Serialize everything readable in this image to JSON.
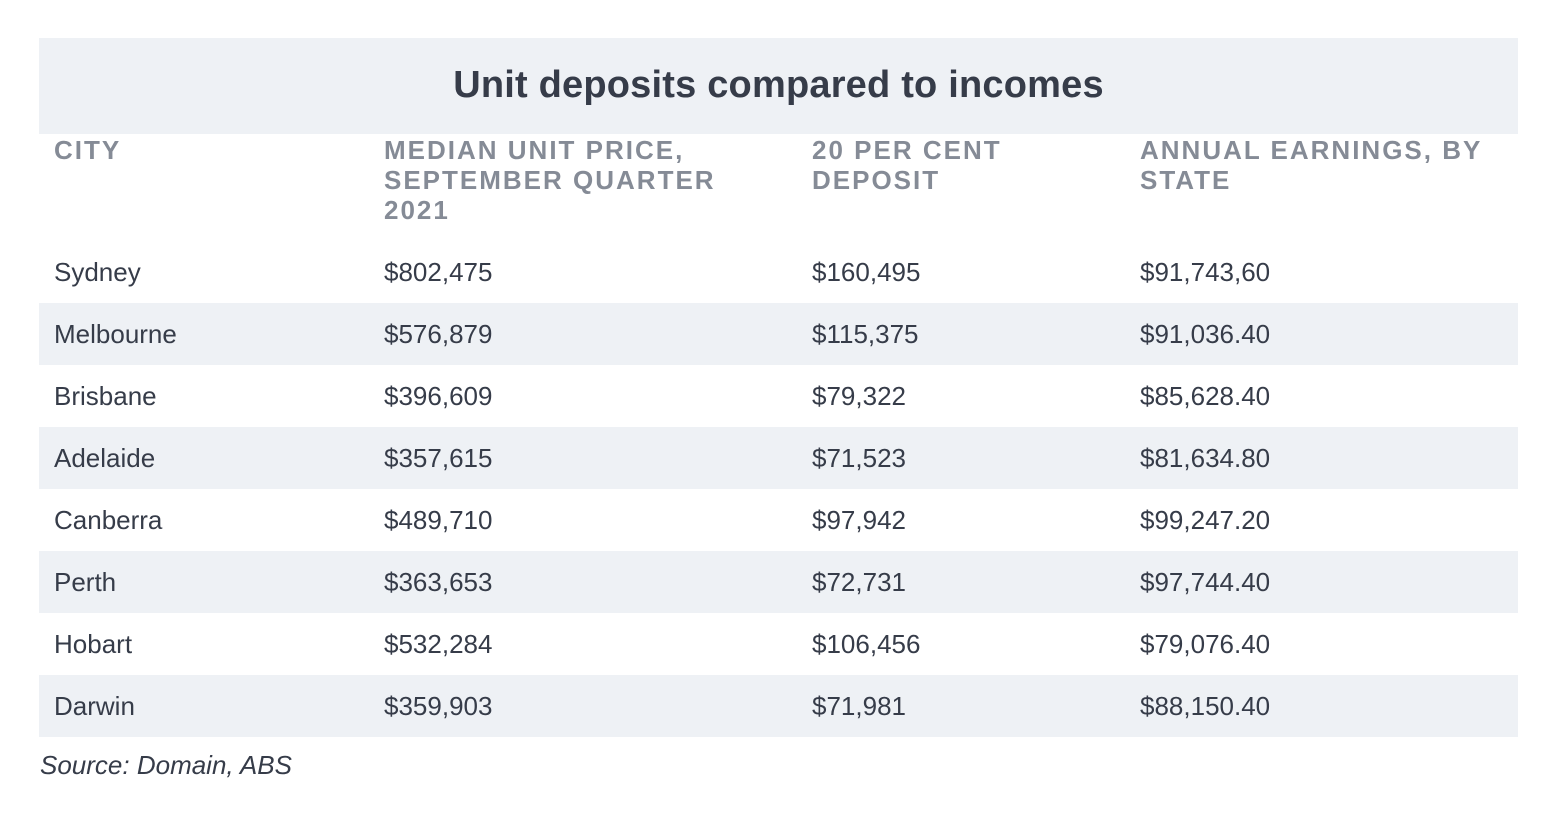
{
  "chart_data": {
    "type": "table",
    "title": "Unit deposits compared to incomes",
    "columns": [
      "CITY",
      "MEDIAN UNIT PRICE, SEPTEMBER QUARTER 2021",
      "20 PER CENT DEPOSIT",
      "ANNUAL EARNINGS, BY STATE"
    ],
    "rows": [
      [
        "Sydney",
        "$802,475",
        "$160,495",
        "$91,743,60"
      ],
      [
        "Melbourne",
        "$576,879",
        "$115,375",
        "$91,036.40"
      ],
      [
        "Brisbane",
        "$396,609",
        "$79,322",
        "$85,628.40"
      ],
      [
        "Adelaide",
        "$357,615",
        "$71,523",
        "$81,634.80"
      ],
      [
        "Canberra",
        "$489,710",
        "$97,942",
        "$99,247.20"
      ],
      [
        "Perth",
        "$363,653",
        "$72,731",
        "$97,744.40"
      ],
      [
        "Hobart",
        "$532,284",
        "$106,456",
        "$79,076.40"
      ],
      [
        "Darwin",
        "$359,903",
        "$71,981",
        "$88,150.40"
      ]
    ],
    "source": "Source: Domain, ABS"
  },
  "colors": {
    "text": "#363c49",
    "header_text": "#858b96",
    "band_background": "#eef1f5",
    "page_background": "#ffffff"
  }
}
